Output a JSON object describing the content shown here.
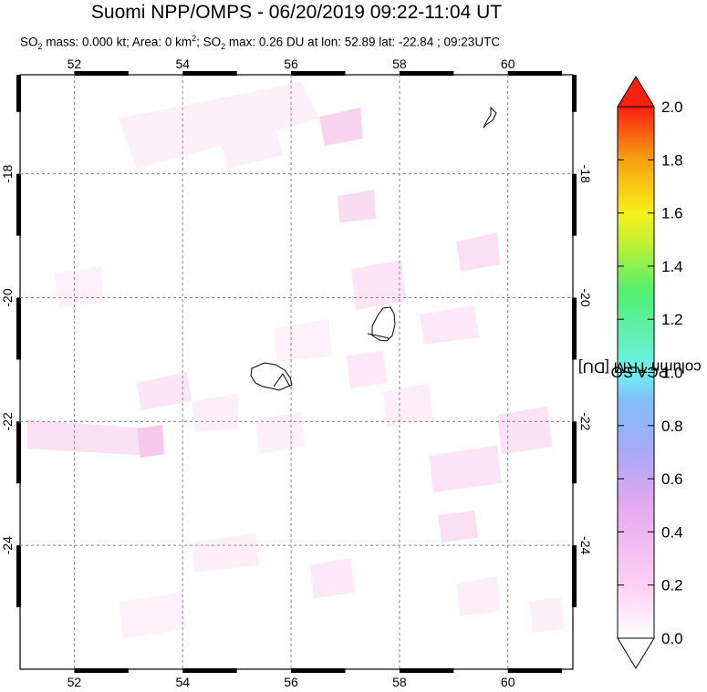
{
  "title": "Suomi NPP/OMPS - 06/20/2019 09:22-11:04 UT",
  "subtitle": {
    "p1": "SO",
    "sub1": "2",
    "p2": " mass: 0.000 kt; Area: 0 km",
    "sup1": "2",
    "p3": "; SO",
    "sub2": "2",
    "p4": " max: 0.26 DU at lon: 52.89 lat: -22.84 ; 09:23UTC"
  },
  "map": {
    "lon_range": [
      51,
      61.2
    ],
    "lat_range": [
      -26,
      -16.4
    ],
    "lon_ticks": [
      "52",
      "54",
      "56",
      "58",
      "60"
    ],
    "lon_tick_values": [
      52,
      54,
      56,
      58,
      60
    ],
    "lat_ticks": [
      "-18",
      "-20",
      "-22",
      "-24"
    ],
    "lat_tick_values": [
      -18,
      -20,
      -22,
      -24
    ],
    "gridlines": true
  },
  "colorbar": {
    "label_pre": "PCA SO",
    "label_sub": "2",
    "label_post": " column TRM [DU]",
    "ticks": [
      "2.0",
      "1.8",
      "1.6",
      "1.4",
      "1.2",
      "1.0",
      "0.8",
      "0.6",
      "0.4",
      "0.2",
      "0.0"
    ],
    "tick_values": [
      2.0,
      1.8,
      1.6,
      1.4,
      1.2,
      1.0,
      0.8,
      0.6,
      0.4,
      0.2,
      0.0
    ],
    "range": [
      0.0,
      2.0
    ],
    "colors": [
      "#ffffff",
      "#ffc8f0",
      "#e6a8f0",
      "#a8a8f8",
      "#78c8f8",
      "#6ef0f0",
      "#5af07a",
      "#c8f030",
      "#f8e81a",
      "#f8a010",
      "#f82810"
    ]
  },
  "colors": {
    "pixel_light": "#fdeaf7",
    "pixel_mid": "#f9d2ef",
    "pixel_strong": "#f3b6e6"
  }
}
